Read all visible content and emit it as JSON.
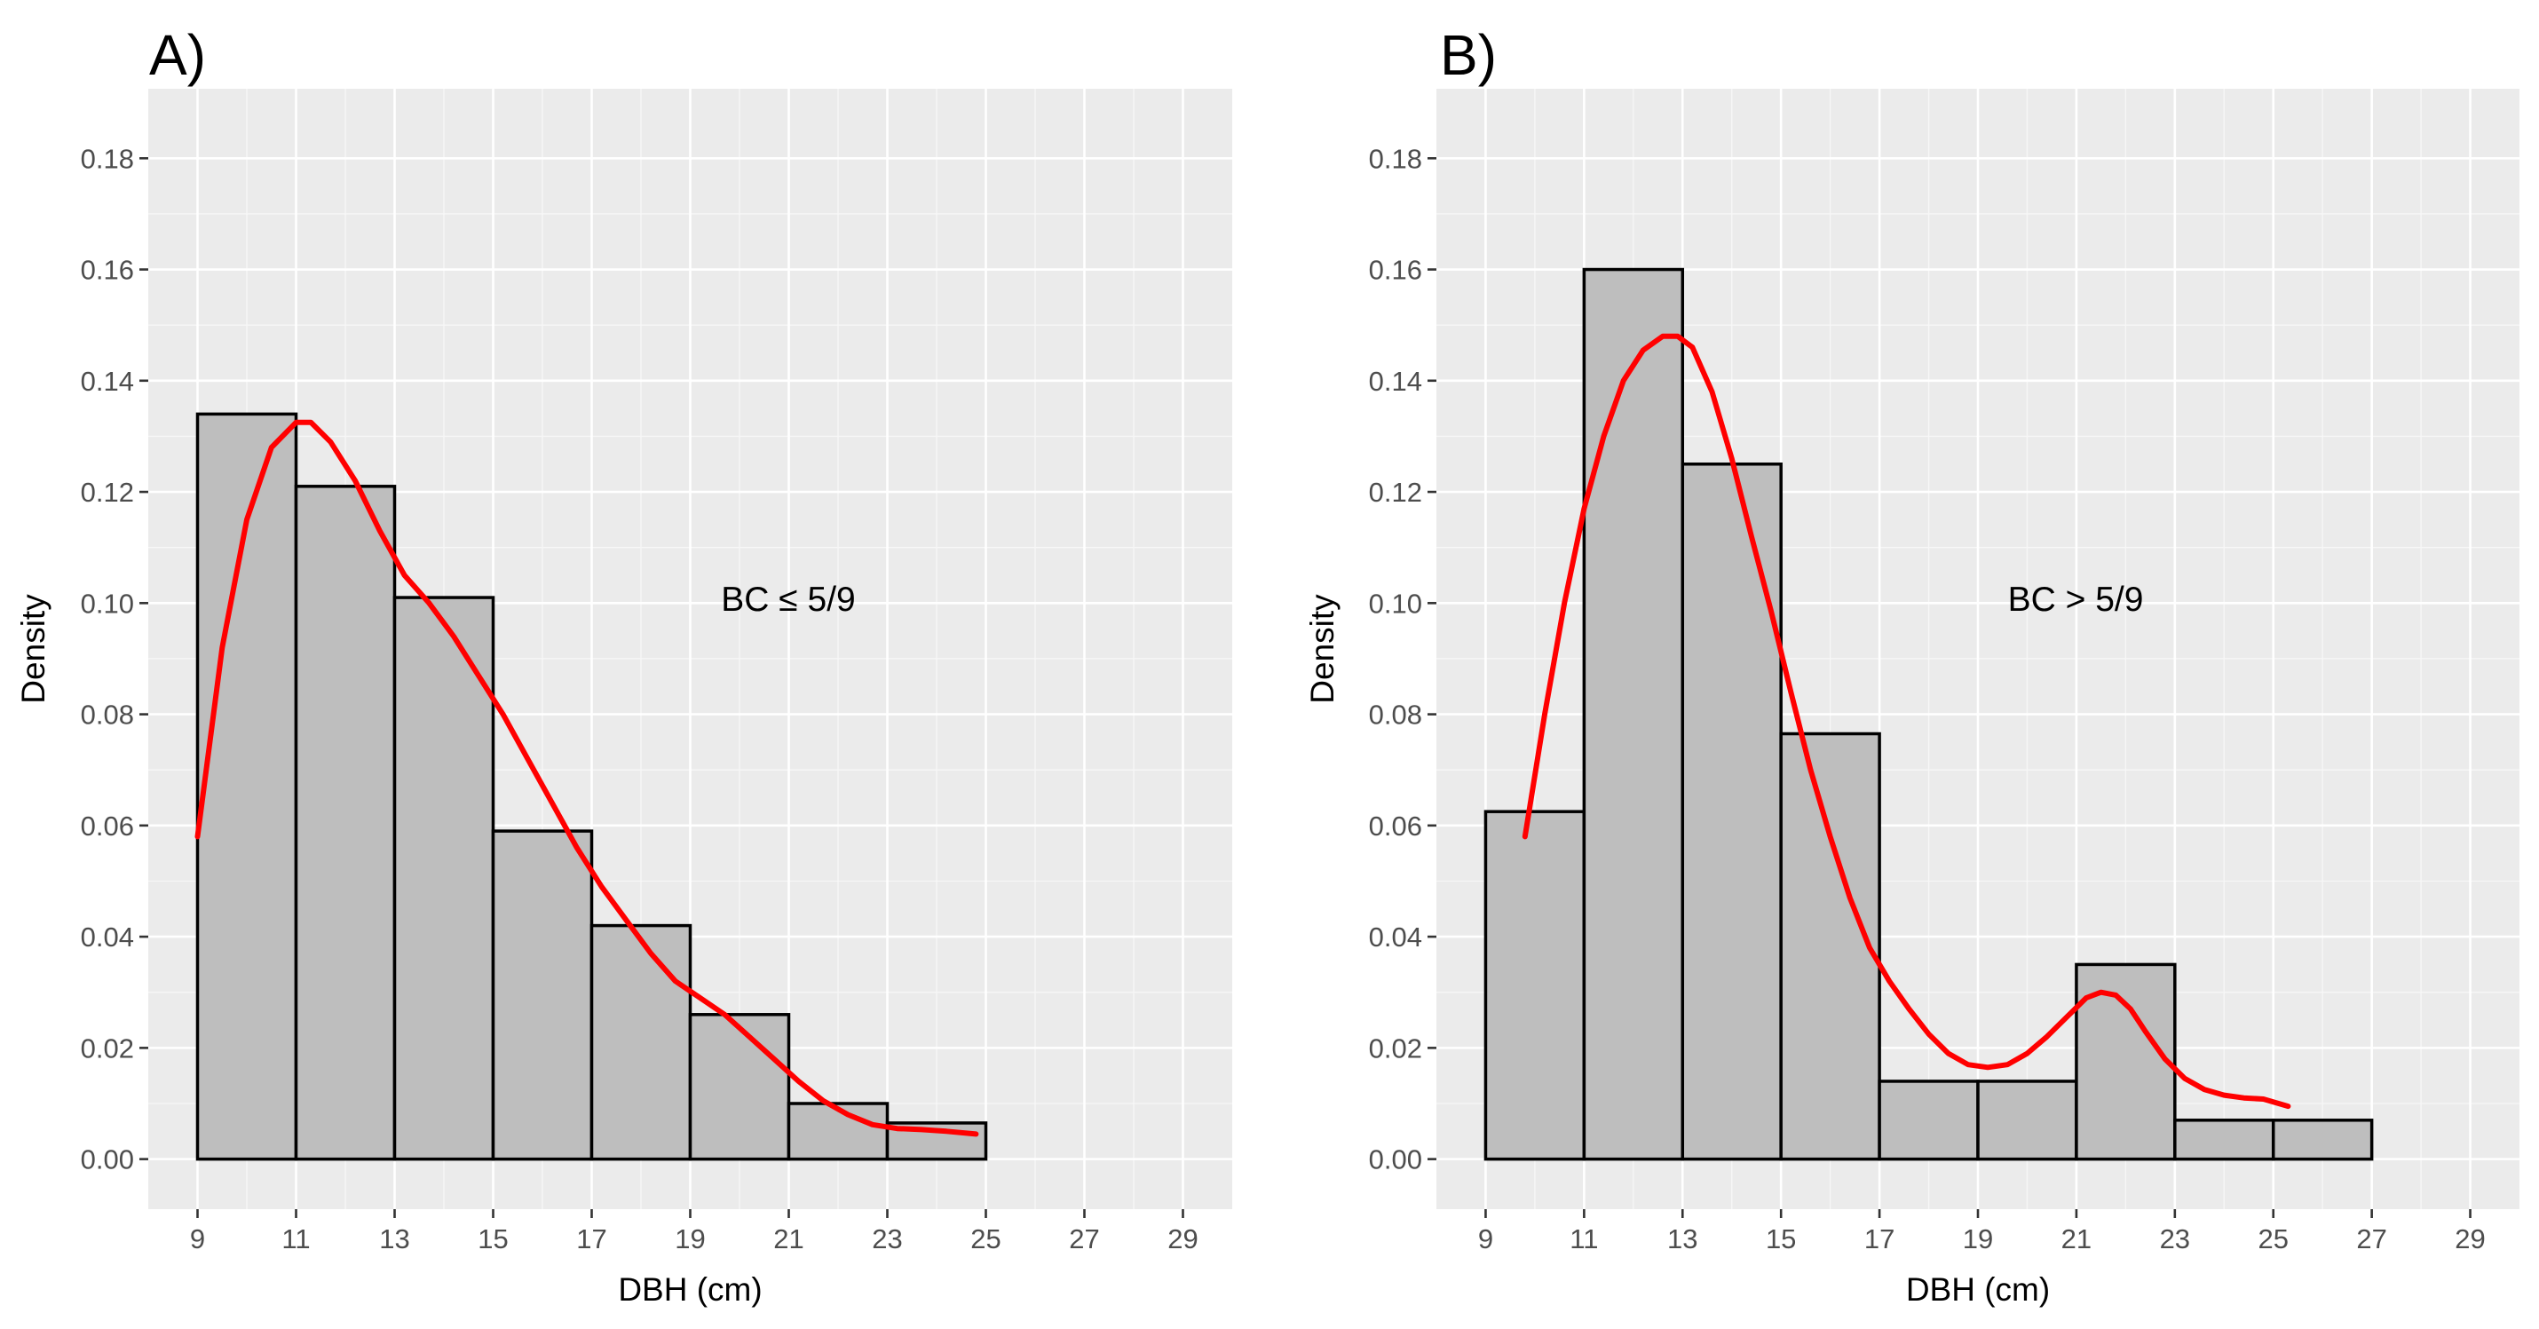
{
  "chart_data": [
    {
      "type": "bar",
      "panel_tag": "A)",
      "xlabel": "DBH (cm)",
      "ylabel": "Density",
      "annotation": "BC ≤ 5/9",
      "xlim": [
        8,
        30
      ],
      "ylim": [
        -0.009,
        0.1925
      ],
      "x_ticks": [
        9,
        11,
        13,
        15,
        17,
        19,
        21,
        23,
        25,
        27,
        29
      ],
      "y_ticks": [
        0.0,
        0.02,
        0.04,
        0.06,
        0.08,
        0.1,
        0.12,
        0.14,
        0.16,
        0.18
      ],
      "y_tick_labels": [
        "0.00",
        "0.02",
        "0.04",
        "0.06",
        "0.08",
        "0.10",
        "0.12",
        "0.14",
        "0.16",
        "0.18"
      ],
      "bin_edges": [
        9,
        11,
        13,
        15,
        17,
        19,
        21,
        23,
        25
      ],
      "values": [
        0.134,
        0.121,
        0.101,
        0.059,
        0.042,
        0.026,
        0.01,
        0.0065
      ],
      "density_curve": {
        "x": [
          9.0,
          9.5,
          10.0,
          10.5,
          11.0,
          11.3,
          11.7,
          12.2,
          12.7,
          13.2,
          13.7,
          14.2,
          14.7,
          15.2,
          15.7,
          16.2,
          16.7,
          17.2,
          17.7,
          18.2,
          18.7,
          19.2,
          19.7,
          20.2,
          20.7,
          21.2,
          21.7,
          22.2,
          22.7,
          23.2,
          23.7,
          24.2,
          24.8
        ],
        "y": [
          0.058,
          0.092,
          0.115,
          0.128,
          0.1325,
          0.1325,
          0.129,
          0.122,
          0.113,
          0.105,
          0.1,
          0.094,
          0.087,
          0.08,
          0.072,
          0.064,
          0.056,
          0.049,
          0.043,
          0.037,
          0.032,
          0.029,
          0.026,
          0.022,
          0.018,
          0.014,
          0.0105,
          0.008,
          0.0062,
          0.0055,
          0.0053,
          0.005,
          0.0045
        ]
      }
    },
    {
      "type": "bar",
      "panel_tag": "B)",
      "xlabel": "DBH (cm)",
      "ylabel": "Density",
      "annotation": "BC > 5/9",
      "xlim": [
        8,
        30
      ],
      "ylim": [
        -0.009,
        0.1925
      ],
      "x_ticks": [
        9,
        11,
        13,
        15,
        17,
        19,
        21,
        23,
        25,
        27,
        29
      ],
      "y_ticks": [
        0.0,
        0.02,
        0.04,
        0.06,
        0.08,
        0.1,
        0.12,
        0.14,
        0.16,
        0.18
      ],
      "y_tick_labels": [
        "0.00",
        "0.02",
        "0.04",
        "0.06",
        "0.08",
        "0.10",
        "0.12",
        "0.14",
        "0.16",
        "0.18"
      ],
      "bin_edges": [
        9,
        11,
        13,
        15,
        17,
        19,
        21,
        23,
        25,
        27
      ],
      "values": [
        0.0625,
        0.16,
        0.125,
        0.0765,
        0.014,
        0.014,
        0.035,
        0.007,
        0.007
      ],
      "density_curve": {
        "x": [
          9.8,
          10.2,
          10.6,
          11.0,
          11.4,
          11.8,
          12.2,
          12.6,
          12.9,
          13.2,
          13.6,
          14.0,
          14.4,
          14.8,
          15.2,
          15.6,
          16.0,
          16.4,
          16.8,
          17.2,
          17.6,
          18.0,
          18.4,
          18.8,
          19.2,
          19.6,
          20.0,
          20.4,
          20.8,
          21.2,
          21.5,
          21.8,
          22.1,
          22.4,
          22.8,
          23.2,
          23.6,
          24.0,
          24.4,
          24.8,
          25.3
        ],
        "y": [
          0.058,
          0.08,
          0.1,
          0.117,
          0.13,
          0.14,
          0.1455,
          0.148,
          0.148,
          0.146,
          0.138,
          0.126,
          0.112,
          0.0985,
          0.084,
          0.07,
          0.058,
          0.047,
          0.038,
          0.032,
          0.027,
          0.0225,
          0.019,
          0.017,
          0.0165,
          0.017,
          0.019,
          0.022,
          0.0255,
          0.029,
          0.03,
          0.0295,
          0.027,
          0.023,
          0.018,
          0.0145,
          0.0125,
          0.0115,
          0.011,
          0.0108,
          0.0095
        ]
      }
    }
  ]
}
